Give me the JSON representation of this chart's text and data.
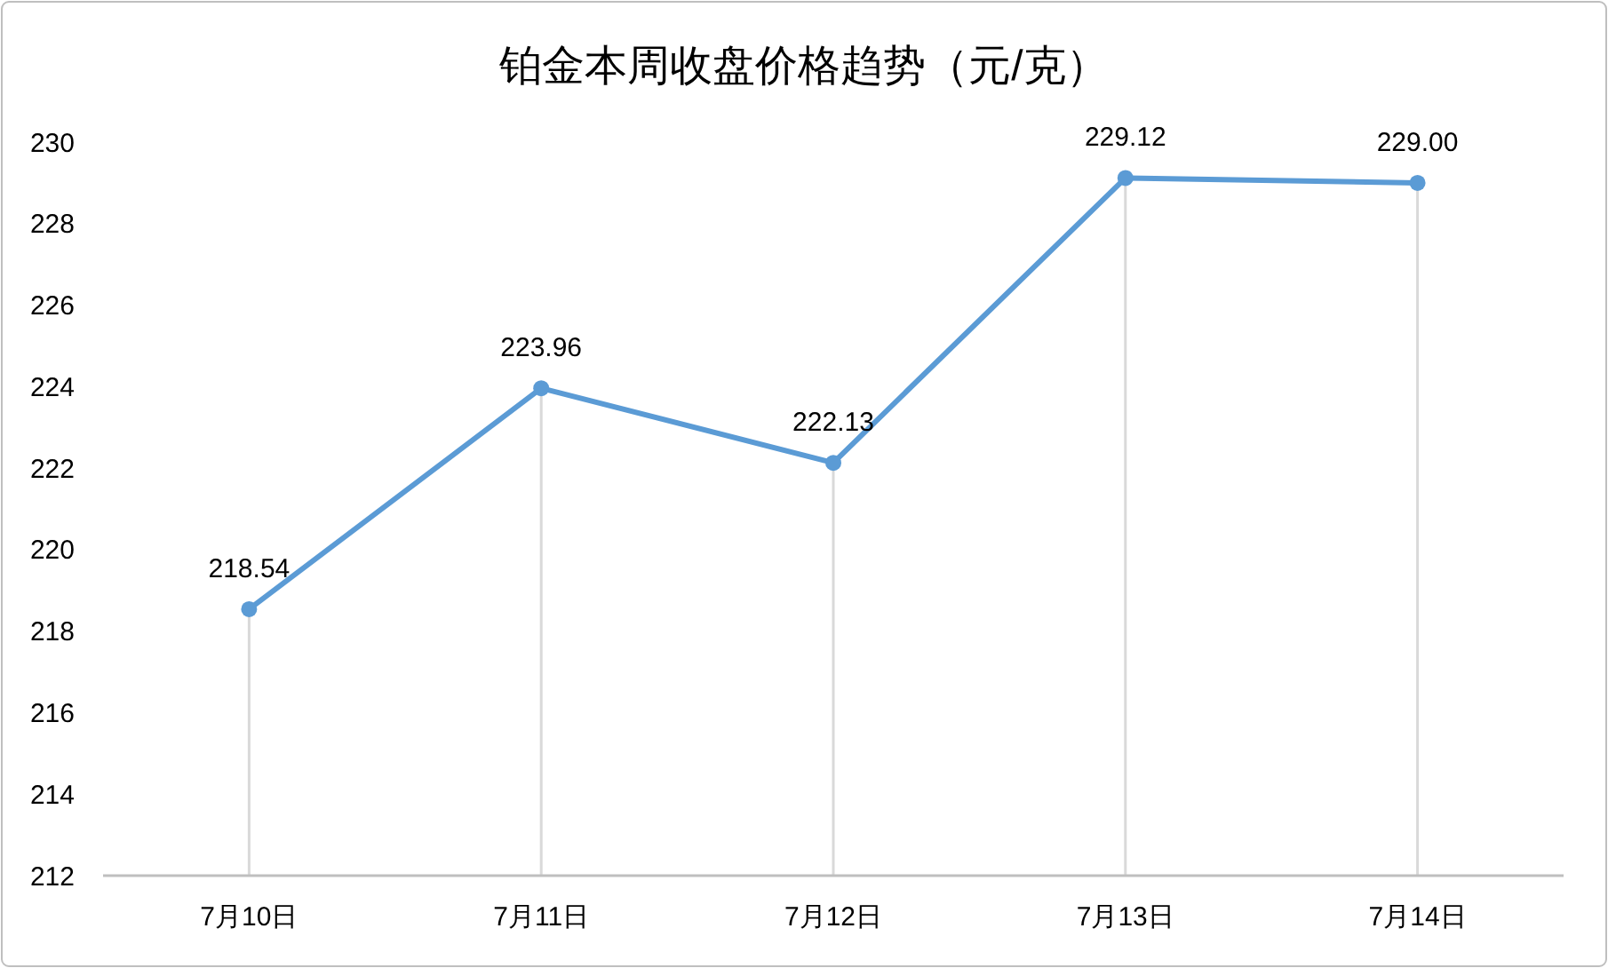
{
  "chart_data": {
    "type": "line",
    "title": "铂金本周收盘价格趋势（元/克）",
    "categories": [
      "7月10日",
      "7月11日",
      "7月12日",
      "7月13日",
      "7月14日"
    ],
    "series": [
      {
        "color": "#5b9bd5",
        "values": [
          218.54,
          223.96,
          222.13,
          229.12,
          229.0
        ],
        "value_labels": [
          "218.54",
          "223.96",
          "222.13",
          "229.12",
          "229.00"
        ]
      }
    ],
    "ylim": [
      212,
      230
    ],
    "yticks": [
      212,
      214,
      216,
      218,
      220,
      222,
      224,
      226,
      228,
      230
    ],
    "grid": "x",
    "marker": "circle",
    "line_style": "solid"
  }
}
